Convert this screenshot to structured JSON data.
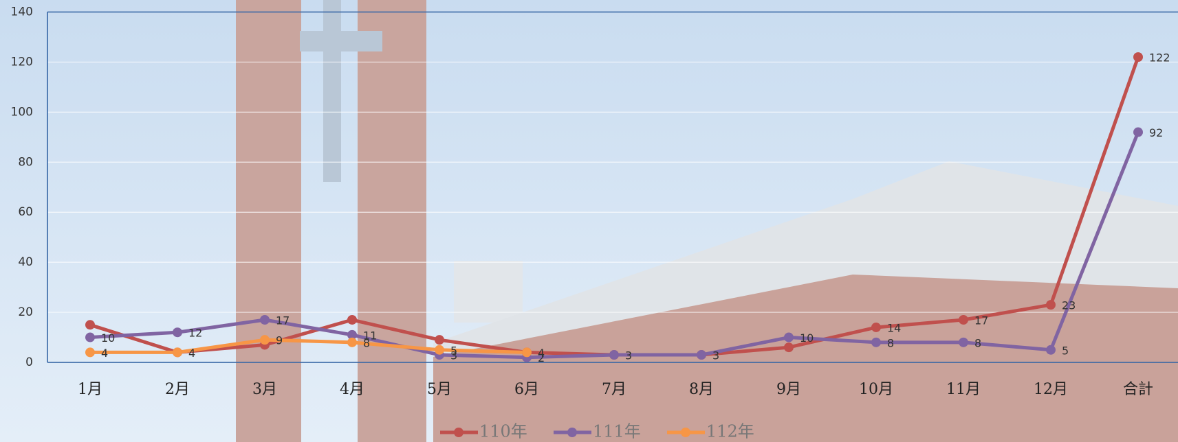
{
  "chart_data": {
    "type": "line",
    "categories": [
      "1月",
      "2月",
      "3月",
      "4月",
      "5月",
      "6月",
      "7月",
      "8月",
      "9月",
      "10月",
      "11月",
      "12月",
      "合計"
    ],
    "series": [
      {
        "name": "110年",
        "color": "#c0504d",
        "values": [
          15,
          4,
          7,
          17,
          9,
          4,
          3,
          3,
          6,
          14,
          17,
          23,
          122
        ],
        "value_labels": [
          null,
          null,
          null,
          null,
          null,
          null,
          null,
          null,
          null,
          "14",
          "17",
          "23",
          "122"
        ]
      },
      {
        "name": "111年",
        "color": "#8064a2",
        "values": [
          10,
          12,
          17,
          11,
          3,
          2,
          3,
          3,
          10,
          8,
          8,
          5,
          92
        ],
        "value_labels": [
          "10",
          "12",
          "17",
          "11",
          "3",
          "2",
          "3",
          "3",
          "10",
          "8",
          "8",
          "5",
          "92"
        ]
      },
      {
        "name": "112年",
        "color": "#f79646",
        "values": [
          4,
          4,
          9,
          8,
          5,
          4,
          null,
          null,
          null,
          null,
          null,
          null,
          null
        ],
        "value_labels": [
          "4",
          "4",
          "9",
          "8",
          "5",
          "4",
          null,
          null,
          null,
          null,
          null,
          null,
          null
        ]
      }
    ],
    "ylim": [
      0,
      140
    ],
    "yticks": [
      0,
      20,
      40,
      60,
      80,
      100,
      120,
      140
    ],
    "grid": true
  }
}
